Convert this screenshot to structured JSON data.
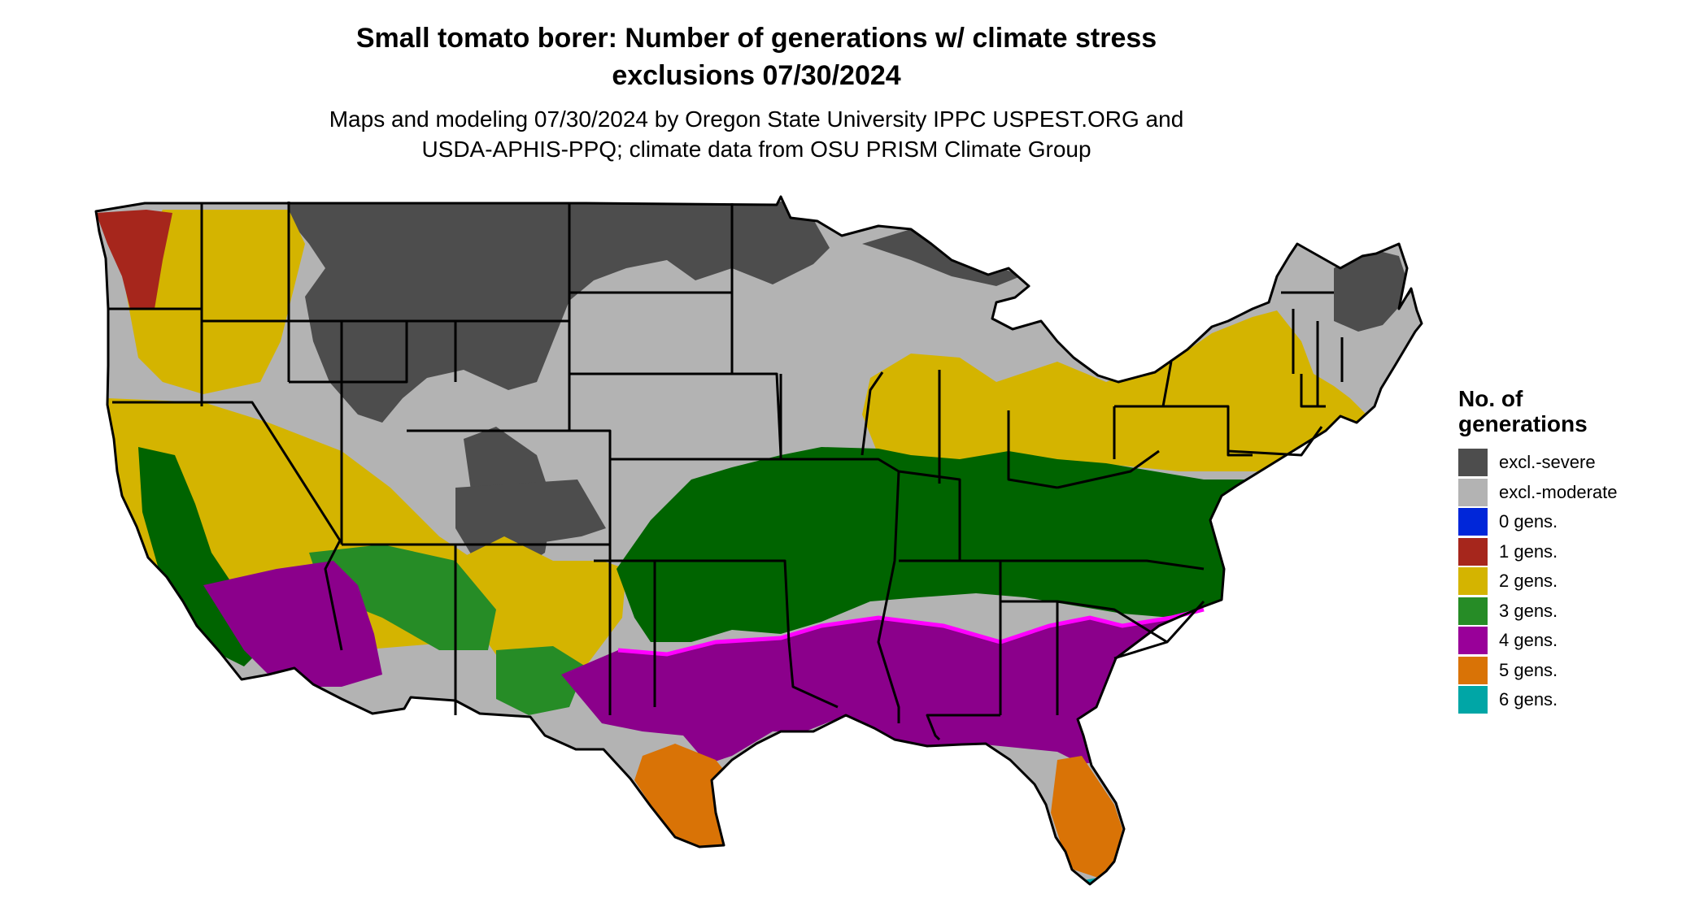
{
  "title": {
    "line1": "Small tomato borer: Number of generations w/ climate stress",
    "line2": "exclusions 07/30/2024"
  },
  "subtitle": {
    "line1": "Maps and modeling 07/30/2024 by Oregon State University IPPC USPEST.ORG and",
    "line2": "USDA-APHIS-PPQ; climate data from OSU PRISM Climate Group"
  },
  "legend": {
    "title_line1": "No. of",
    "title_line2": "generations",
    "items": [
      {
        "label": "excl.-severe",
        "color": "#4d4d4d"
      },
      {
        "label": "excl.-moderate",
        "color": "#b3b3b3"
      },
      {
        "label": "0 gens.",
        "color": "#0026d9"
      },
      {
        "label": "1 gens.",
        "color": "#a6261c"
      },
      {
        "label": "2 gens.",
        "color": "#d4b400"
      },
      {
        "label": "3 gens.",
        "color": "#268c26"
      },
      {
        "label": "4 gens.",
        "color": "#990099"
      },
      {
        "label": "5 gens.",
        "color": "#d97306"
      },
      {
        "label": "6 gens.",
        "color": "#00a6a6"
      }
    ]
  },
  "map": {
    "region": "Contiguous United States",
    "boundary_color": "#000000",
    "region_colors": {
      "severe": "#4d4d4d",
      "moderate": "#b3b3b3",
      "one": "#a6261c",
      "two": "#d4b400",
      "three": "#006400",
      "three_light": "#268c26",
      "four": "#8b008b",
      "four_edge": "#ff00ff",
      "five": "#d97306",
      "six": "#00a6a6"
    }
  }
}
